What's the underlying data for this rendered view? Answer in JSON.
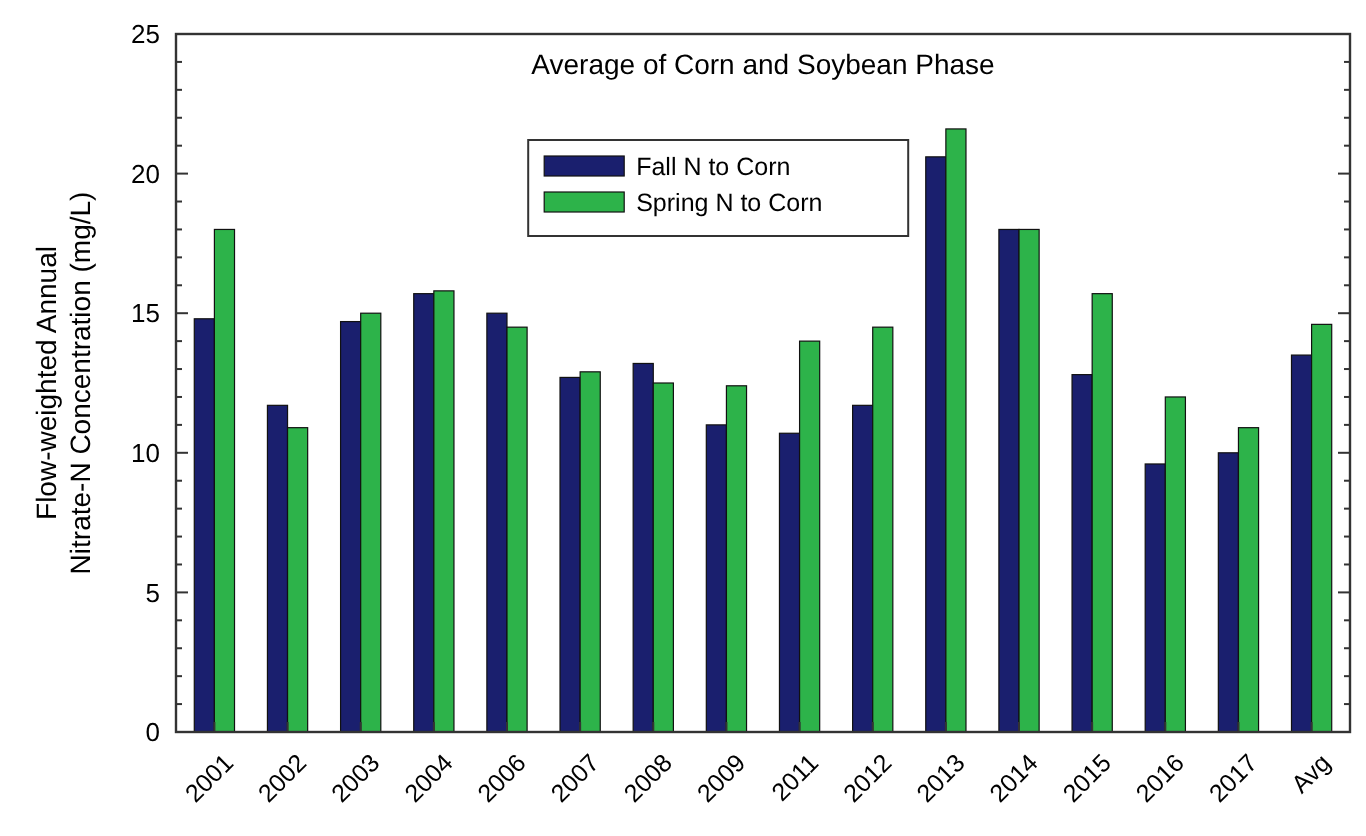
{
  "chart_data": {
    "type": "bar",
    "title": "Average of Corn and Soybean Phase",
    "ylabel": "Flow-weighted Annual\nNitrate-N Concentration (mg/L)",
    "categories": [
      "2001",
      "2002",
      "2003",
      "2004",
      "2006",
      "2007",
      "2008",
      "2009",
      "2011",
      "2012",
      "2013",
      "2014",
      "2015",
      "2016",
      "2017",
      "Avg"
    ],
    "series": [
      {
        "name": "Fall N to Corn",
        "color": "#1a1f6e",
        "values": [
          14.8,
          11.7,
          14.7,
          15.7,
          15.0,
          12.7,
          13.2,
          11.0,
          10.7,
          11.7,
          20.6,
          18.0,
          12.8,
          9.6,
          10.0,
          13.5
        ]
      },
      {
        "name": "Spring N to Corn",
        "color": "#2db34a",
        "values": [
          18.0,
          10.9,
          15.0,
          15.8,
          14.5,
          12.9,
          12.5,
          12.4,
          14.0,
          14.5,
          21.6,
          18.0,
          15.7,
          12.0,
          10.9,
          14.6
        ]
      }
    ],
    "ylim": [
      0,
      25
    ],
    "yticks": [
      0,
      5,
      10,
      15,
      20,
      25
    ],
    "legend": "top",
    "grid": false
  }
}
